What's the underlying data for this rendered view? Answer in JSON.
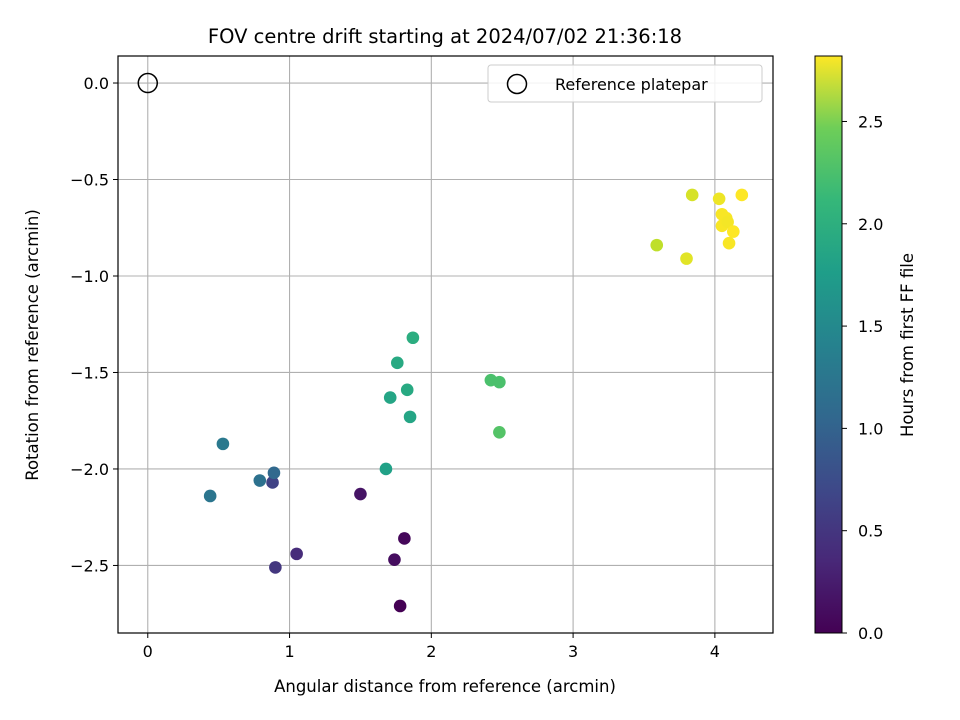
{
  "chart_data": {
    "type": "scatter",
    "title": "FOV centre drift starting at 2024/07/02 21:36:18",
    "xlabel": "Angular distance from reference (arcmin)",
    "ylabel": "Rotation from reference (arcmin)",
    "xlim": [
      -0.21,
      4.41
    ],
    "ylim": [
      -2.85,
      0.14
    ],
    "xticks": [
      0,
      1,
      2,
      3,
      4
    ],
    "xtick_labels": [
      "0",
      "1",
      "2",
      "3",
      "4"
    ],
    "yticks": [
      0.0,
      -0.5,
      -1.0,
      -1.5,
      -2.0,
      -2.5
    ],
    "ytick_labels": [
      "0.0",
      "−0.5",
      "−1.0",
      "−1.5",
      "−2.0",
      "−2.5"
    ],
    "grid": true,
    "legend": {
      "placement": "top-right",
      "entries": [
        "Reference platepar"
      ]
    },
    "reference_point": {
      "x": 0.0,
      "y": 0.0,
      "marker": "hollow-circle"
    },
    "colorbar": {
      "label": "Hours from first FF file",
      "colormap": "viridis",
      "range": [
        0.0,
        2.82
      ],
      "ticks": [
        0.0,
        0.5,
        1.0,
        1.5,
        2.0,
        2.5
      ],
      "tick_labels": [
        "0.0",
        "0.5",
        "1.0",
        "1.5",
        "2.0",
        "2.5"
      ]
    },
    "points": [
      {
        "x": 1.78,
        "y": -2.71,
        "hours": 0.0
      },
      {
        "x": 1.81,
        "y": -2.36,
        "hours": 0.05
      },
      {
        "x": 1.74,
        "y": -2.47,
        "hours": 0.1
      },
      {
        "x": 1.5,
        "y": -2.13,
        "hours": 0.15
      },
      {
        "x": 1.05,
        "y": -2.44,
        "hours": 0.35
      },
      {
        "x": 0.9,
        "y": -2.51,
        "hours": 0.45
      },
      {
        "x": 0.88,
        "y": -2.07,
        "hours": 0.55
      },
      {
        "x": 0.89,
        "y": -2.02,
        "hours": 0.95
      },
      {
        "x": 0.79,
        "y": -2.06,
        "hours": 1.05
      },
      {
        "x": 0.44,
        "y": -2.14,
        "hours": 1.1
      },
      {
        "x": 0.53,
        "y": -1.87,
        "hours": 1.15
      },
      {
        "x": 1.68,
        "y": -2.0,
        "hours": 1.6
      },
      {
        "x": 1.71,
        "y": -1.63,
        "hours": 1.65
      },
      {
        "x": 1.85,
        "y": -1.73,
        "hours": 1.65
      },
      {
        "x": 1.83,
        "y": -1.59,
        "hours": 1.7
      },
      {
        "x": 1.76,
        "y": -1.45,
        "hours": 1.7
      },
      {
        "x": 1.87,
        "y": -1.32,
        "hours": 1.75
      },
      {
        "x": 2.42,
        "y": -1.54,
        "hours": 2.0
      },
      {
        "x": 2.48,
        "y": -1.55,
        "hours": 2.0
      },
      {
        "x": 2.48,
        "y": -1.81,
        "hours": 2.05
      },
      {
        "x": 3.59,
        "y": -0.84,
        "hours": 2.55
      },
      {
        "x": 3.8,
        "y": -0.91,
        "hours": 2.7
      },
      {
        "x": 3.84,
        "y": -0.58,
        "hours": 2.65
      },
      {
        "x": 4.03,
        "y": -0.6,
        "hours": 2.75
      },
      {
        "x": 4.05,
        "y": -0.68,
        "hours": 2.8
      },
      {
        "x": 4.08,
        "y": -0.7,
        "hours": 2.8
      },
      {
        "x": 4.05,
        "y": -0.74,
        "hours": 2.8
      },
      {
        "x": 4.09,
        "y": -0.72,
        "hours": 2.78
      },
      {
        "x": 4.13,
        "y": -0.77,
        "hours": 2.82
      },
      {
        "x": 4.1,
        "y": -0.83,
        "hours": 2.8
      },
      {
        "x": 4.19,
        "y": -0.58,
        "hours": 2.82
      }
    ]
  }
}
